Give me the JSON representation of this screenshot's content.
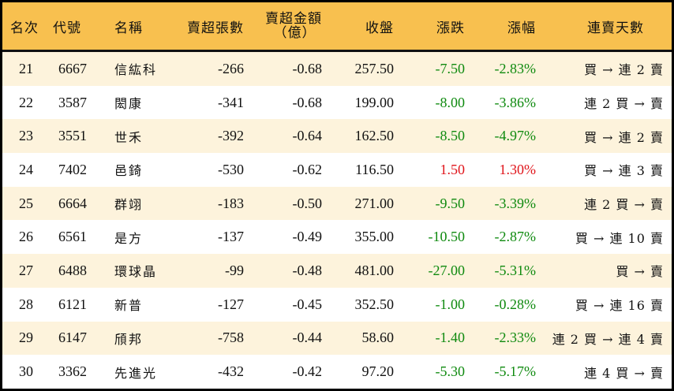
{
  "colors": {
    "header_bg": "#F8C04F",
    "row_alt_bg": "#FDF3DC",
    "row_bg": "#FFFFFF",
    "down": "#0F8A0F",
    "up": "#E0151B",
    "border": "#000000"
  },
  "header": {
    "rank": "名次",
    "code": "代號",
    "name": "名稱",
    "net_sell_lots": "賣超張數",
    "net_sell_amount": "賣超金額",
    "net_sell_amount_unit": "（億）",
    "close": "收盤",
    "change": "漲跌",
    "change_pct": "漲幅",
    "streak": "連賣天數"
  },
  "rows": [
    {
      "rank": "21",
      "code": "6667",
      "name": "信紘科",
      "lots": "-266",
      "amount": "-0.68",
      "close": "257.50",
      "change": "-7.50",
      "pct": "-2.83%",
      "dir": "down",
      "streak": "買 → 連 2 賣"
    },
    {
      "rank": "22",
      "code": "3587",
      "name": "閎康",
      "lots": "-341",
      "amount": "-0.68",
      "close": "199.00",
      "change": "-8.00",
      "pct": "-3.86%",
      "dir": "down",
      "streak": "連 2 買 → 賣"
    },
    {
      "rank": "23",
      "code": "3551",
      "name": "世禾",
      "lots": "-392",
      "amount": "-0.64",
      "close": "162.50",
      "change": "-8.50",
      "pct": "-4.97%",
      "dir": "down",
      "streak": "買 → 連 2 賣"
    },
    {
      "rank": "24",
      "code": "7402",
      "name": "邑錡",
      "lots": "-530",
      "amount": "-0.62",
      "close": "116.50",
      "change": "1.50",
      "pct": "1.30%",
      "dir": "up",
      "streak": "買 → 連 3 賣"
    },
    {
      "rank": "25",
      "code": "6664",
      "name": "群翊",
      "lots": "-183",
      "amount": "-0.50",
      "close": "271.00",
      "change": "-9.50",
      "pct": "-3.39%",
      "dir": "down",
      "streak": "連 2 買 → 賣"
    },
    {
      "rank": "26",
      "code": "6561",
      "name": "是方",
      "lots": "-137",
      "amount": "-0.49",
      "close": "355.00",
      "change": "-10.50",
      "pct": "-2.87%",
      "dir": "down",
      "streak": "買 → 連 10 賣"
    },
    {
      "rank": "27",
      "code": "6488",
      "name": "環球晶",
      "lots": "-99",
      "amount": "-0.48",
      "close": "481.00",
      "change": "-27.00",
      "pct": "-5.31%",
      "dir": "down",
      "streak": "買 → 賣"
    },
    {
      "rank": "28",
      "code": "6121",
      "name": "新普",
      "lots": "-127",
      "amount": "-0.45",
      "close": "352.50",
      "change": "-1.00",
      "pct": "-0.28%",
      "dir": "down",
      "streak": "買 → 連 16 賣"
    },
    {
      "rank": "29",
      "code": "6147",
      "name": "頎邦",
      "lots": "-758",
      "amount": "-0.44",
      "close": "58.60",
      "change": "-1.40",
      "pct": "-2.33%",
      "dir": "down",
      "streak": "連 2 買 → 連 4 賣"
    },
    {
      "rank": "30",
      "code": "3362",
      "name": "先進光",
      "lots": "-432",
      "amount": "-0.42",
      "close": "97.20",
      "change": "-5.30",
      "pct": "-5.17%",
      "dir": "down",
      "streak": "連 4 買 → 賣"
    }
  ]
}
